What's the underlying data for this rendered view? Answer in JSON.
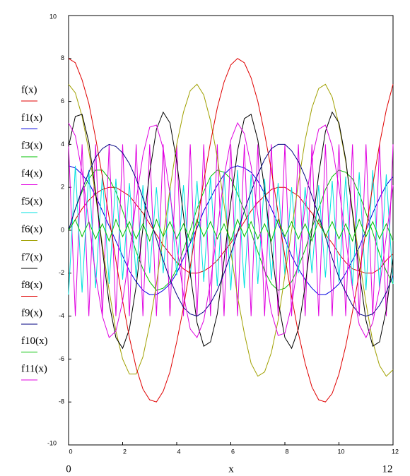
{
  "chart_data": {
    "type": "line",
    "x_label": "x",
    "xlim": [
      0,
      12
    ],
    "ylim": [
      -10,
      10
    ],
    "xticks": [
      0,
      2,
      4,
      6,
      8,
      10,
      12
    ],
    "yticks": [
      -8,
      -6,
      -4,
      -2,
      0,
      2,
      4,
      6,
      8
    ],
    "x": [
      0,
      0.25,
      0.5,
      0.75,
      1,
      1.25,
      1.5,
      1.75,
      2,
      2.25,
      2.5,
      2.75,
      3,
      3.25,
      3.5,
      3.75,
      4,
      4.25,
      4.5,
      4.75,
      5,
      5.25,
      5.5,
      5.75,
      6,
      6.25,
      6.5,
      6.75,
      7,
      7.25,
      7.5,
      7.75,
      8,
      8.25,
      8.5,
      8.75,
      9,
      9.25,
      9.5,
      9.75,
      10,
      10.25,
      10.5,
      10.75,
      11,
      11.25,
      11.5,
      11.75,
      12
    ],
    "series": [
      {
        "name": "f(x)",
        "color": "#e00000",
        "values": [
          0,
          0.5,
          1,
          1.4,
          1.7,
          1.9,
          2,
          2,
          1.8,
          1.6,
          1.2,
          0.8,
          0.3,
          -0.2,
          -0.7,
          -1.1,
          -1.5,
          -1.8,
          -2,
          -2,
          -1.9,
          -1.7,
          -1.4,
          -1,
          -0.6,
          -0.1,
          0.4,
          0.9,
          1.3,
          1.6,
          1.9,
          2,
          2,
          1.8,
          1.6,
          1.2,
          0.8,
          0.3,
          -0.2,
          -0.6,
          -1.1,
          -1.5,
          -1.8,
          -1.9,
          -2,
          -2,
          -1.8,
          -1.4,
          -1.1
        ]
      },
      {
        "name": "f1(x)",
        "color": "#0000e0",
        "values": [
          3,
          2.9,
          2.6,
          2.2,
          1.6,
          0.9,
          0.2,
          -0.5,
          -1.2,
          -1.9,
          -2.4,
          -2.8,
          -3,
          -3,
          -2.8,
          -2.5,
          -2,
          -1.3,
          -0.6,
          0.1,
          0.9,
          1.5,
          2.1,
          2.6,
          2.9,
          3,
          2.9,
          2.7,
          2.3,
          1.7,
          1,
          0.3,
          -0.4,
          -1.2,
          -1.8,
          -2.3,
          -2.7,
          -3,
          -3,
          -2.8,
          -2.5,
          -2,
          -1.4,
          -0.8,
          0,
          0.8,
          1.5,
          2.1,
          2.5
        ]
      },
      {
        "name": "f3(x)",
        "color": "#00c000",
        "values": [
          0,
          1,
          1.8,
          2.4,
          2.8,
          2.8,
          2.4,
          1.8,
          0.9,
          0,
          -1,
          -1.8,
          -2.4,
          -2.8,
          -2.7,
          -2.4,
          -1.8,
          -0.9,
          0,
          1,
          1.8,
          2.5,
          2.8,
          2.7,
          2.4,
          1.7,
          0.9,
          -0.1,
          -1,
          -1.9,
          -2.5,
          -2.8,
          -2.7,
          -2.4,
          -1.7,
          -0.9,
          0.1,
          1,
          1.9,
          2.5,
          2.8,
          2.7,
          2.4,
          1.7,
          0.8,
          -0.1,
          -1.1,
          -1.9,
          -2.5
        ]
      },
      {
        "name": "f4(x)",
        "color": "#e000e0",
        "values": [
          4,
          -4,
          4,
          -4,
          4,
          -4,
          4,
          -4,
          4,
          -4,
          4,
          -4,
          4,
          -4,
          4,
          -4,
          4,
          -4,
          4,
          -4,
          4,
          -4,
          4,
          -4,
          4,
          -4,
          4,
          -4,
          4,
          -4,
          4,
          -4,
          4,
          -4,
          4,
          -4,
          4,
          -4,
          4,
          -4,
          4,
          -4,
          4,
          -4,
          4,
          -4,
          4,
          -4,
          4
        ]
      },
      {
        "name": "f5(x)",
        "color": "#00e0e0",
        "values": [
          -3,
          3,
          -2.9,
          2.8,
          -2.7,
          2.6,
          -2.5,
          2.4,
          -2.3,
          2.2,
          -2.2,
          2.1,
          -2,
          2,
          -2,
          2,
          -2.1,
          2.1,
          -2.2,
          2.3,
          -2.4,
          2.5,
          -2.6,
          2.7,
          -2.8,
          2.8,
          -2.7,
          2.6,
          -2.5,
          2.4,
          -2.3,
          2.2,
          -2.1,
          2,
          -2,
          2,
          -2,
          2.1,
          -2.2,
          2.3,
          -2.4,
          2.5,
          -2.6,
          2.7,
          -2.8,
          2.8,
          -2.7,
          2.6,
          -2.5
        ]
      },
      {
        "name": "f6(x)",
        "color": "#a0a000",
        "values": [
          6.8,
          6.4,
          5.3,
          3.7,
          1.6,
          -0.7,
          -2.8,
          -4.7,
          -6,
          -6.7,
          -6.7,
          -5.9,
          -4.4,
          -2.5,
          -0.3,
          1.9,
          4,
          5.5,
          6.5,
          6.8,
          6.3,
          5.1,
          3.4,
          1.2,
          -1,
          -3.1,
          -4.8,
          -6.2,
          -6.8,
          -6.6,
          -5.7,
          -4.2,
          -2.1,
          0,
          2.2,
          4.2,
          5.7,
          6.6,
          6.8,
          6.2,
          4.9,
          3.2,
          0.9,
          -1.3,
          -3.4,
          -5.2,
          -6.3,
          -6.8,
          -6.5
        ]
      },
      {
        "name": "f7(x)",
        "color": "#000000",
        "values": [
          3.9,
          5.3,
          5.4,
          4.1,
          1.8,
          -0.9,
          -3.4,
          -5,
          -5.5,
          -4.6,
          -2.6,
          0.1,
          2.7,
          4.7,
          5.5,
          5,
          3.2,
          0.7,
          -2,
          -4.3,
          -5.4,
          -5.2,
          -3.9,
          -1.4,
          1.3,
          3.7,
          5.2,
          5.4,
          4.2,
          1.9,
          -0.8,
          -3.3,
          -5,
          -5.5,
          -4.6,
          -2.6,
          0,
          2.6,
          4.6,
          5.5,
          5,
          3.3,
          0.8,
          -1.9,
          -4.2,
          -5.4,
          -5.2,
          -3.7,
          -1.3
        ]
      },
      {
        "name": "f8(x)",
        "color": "#e00000",
        "values": [
          8,
          7.8,
          7,
          5.9,
          4.3,
          2.5,
          0.6,
          -1.4,
          -3.3,
          -5,
          -6.4,
          -7.4,
          -7.9,
          -8,
          -7.5,
          -6.6,
          -5.2,
          -3.6,
          -1.7,
          0.3,
          2.3,
          4.1,
          5.7,
          6.9,
          7.7,
          8,
          7.8,
          7.1,
          6,
          4.5,
          2.8,
          0.8,
          -1.2,
          -3.1,
          -4.8,
          -6.2,
          -7.3,
          -7.9,
          -8,
          -7.6,
          -6.7,
          -5.4,
          -3.8,
          -2,
          0,
          2.1,
          4,
          5.6,
          6.8
        ]
      },
      {
        "name": "f9(x)",
        "color": "#000080",
        "values": [
          0,
          1,
          1.9,
          2.7,
          3.4,
          3.8,
          4,
          3.9,
          3.6,
          3.1,
          2.4,
          1.5,
          0.6,
          -0.4,
          -1.4,
          -2.3,
          -3,
          -3.6,
          -3.9,
          -4,
          -3.8,
          -3.4,
          -2.8,
          -2,
          -1.1,
          -0.1,
          0.9,
          1.8,
          2.6,
          3.3,
          3.8,
          4,
          4,
          3.7,
          3.2,
          2.5,
          1.6,
          0.7,
          -0.3,
          -1.3,
          -2.2,
          -2.9,
          -3.5,
          -3.9,
          -4,
          -3.9,
          -3.5,
          -2.9,
          -2.1
        ]
      },
      {
        "name": "f10(x)",
        "color": "#00c000",
        "values": [
          0,
          0.5,
          -0.3,
          0.4,
          -0.4,
          0.3,
          -0.5,
          0.5,
          -0.3,
          0.4,
          -0.4,
          0.3,
          -0.5,
          0.5,
          -0.3,
          0.4,
          -0.4,
          0.3,
          -0.5,
          0.5,
          -0.3,
          0.4,
          -0.4,
          0.3,
          -0.5,
          0.5,
          -0.3,
          0.4,
          -0.4,
          0.3,
          -0.5,
          0.5,
          -0.3,
          0.4,
          -0.4,
          0.3,
          -0.5,
          0.5,
          -0.3,
          0.4,
          -0.4,
          0.3,
          -0.5,
          0.5,
          -0.3,
          0.4,
          -0.4,
          0.3,
          -0.5
        ]
      },
      {
        "name": "f11(x)",
        "color": "#e000e0",
        "values": [
          5,
          4.4,
          2.7,
          0.4,
          -2.1,
          -4,
          -5,
          -4.7,
          -3.3,
          -1.1,
          1.4,
          3.5,
          4.8,
          4.9,
          3.8,
          1.7,
          -0.7,
          -3,
          -4.6,
          -5,
          -4.2,
          -2.4,
          0,
          2.5,
          4.2,
          5,
          4.5,
          3,
          0.7,
          -1.8,
          -3.8,
          -4.9,
          -4.8,
          -3.5,
          -1.4,
          1.1,
          3.3,
          4.7,
          4.9,
          3.9,
          2,
          -0.4,
          -2.7,
          -4.4,
          -5,
          -4.3,
          -2.7,
          -0.3,
          2.1
        ]
      }
    ]
  }
}
